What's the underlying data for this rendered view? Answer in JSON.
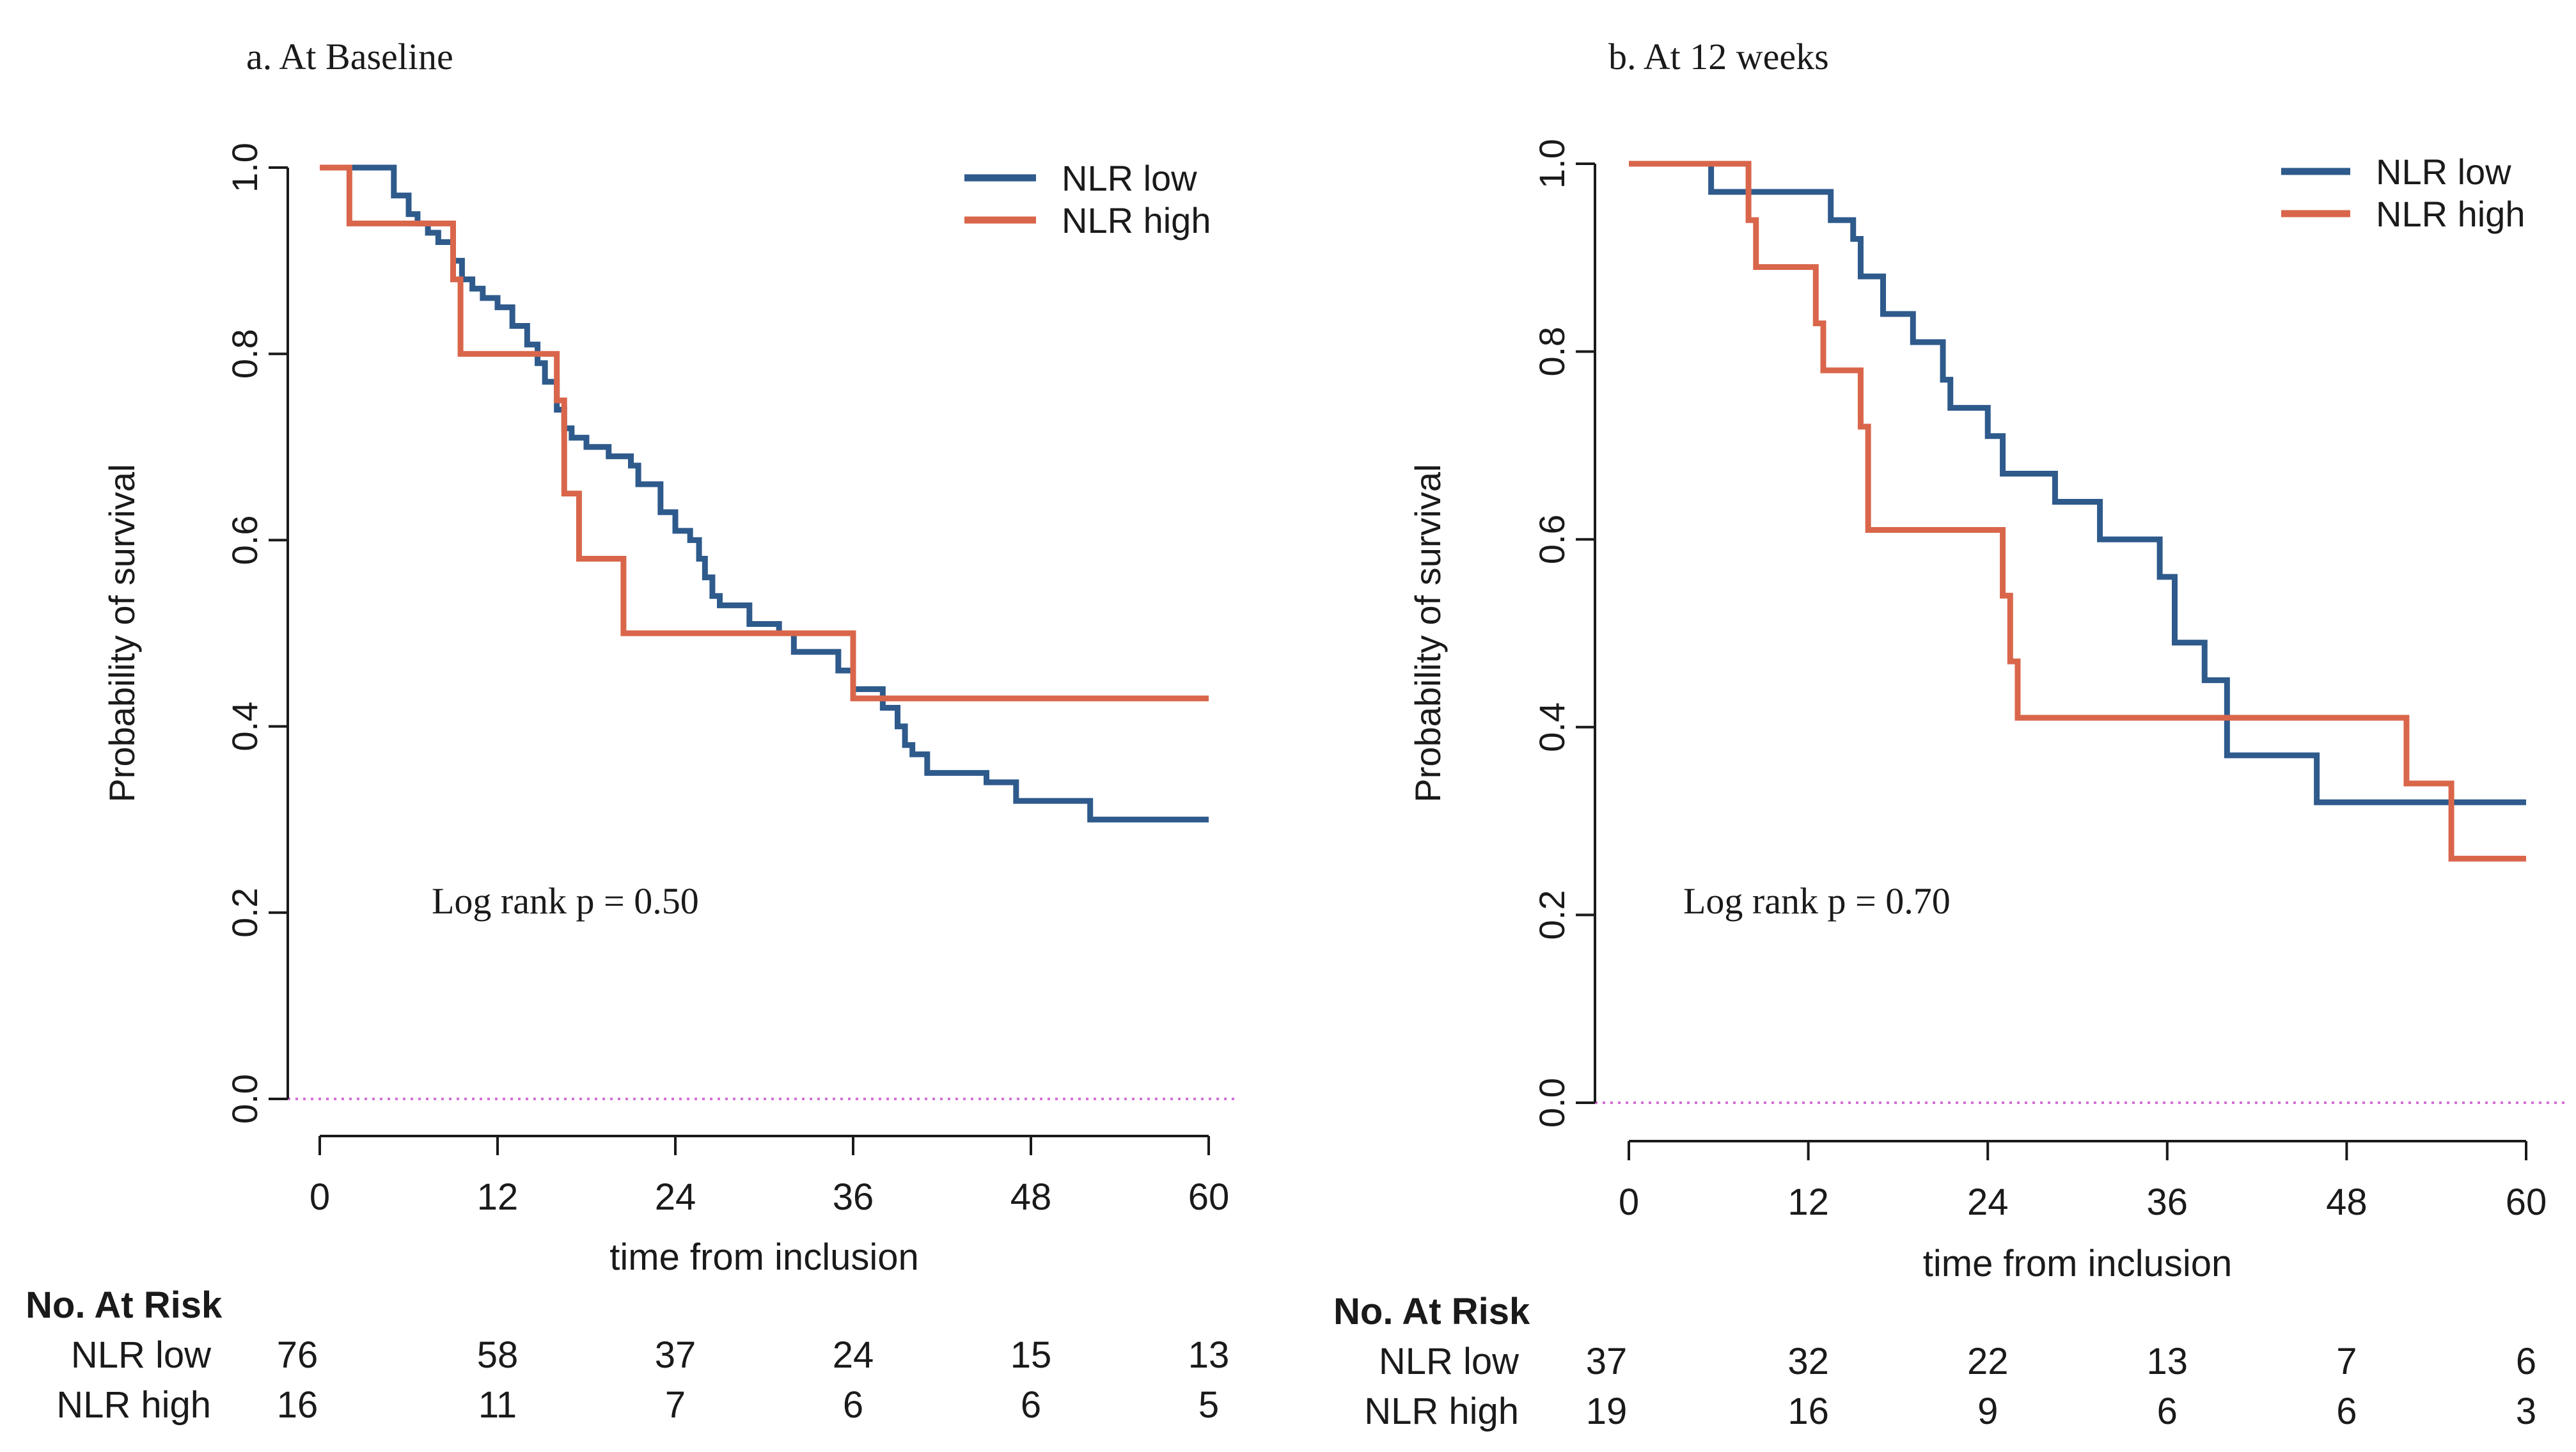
{
  "colors": {
    "low": "#2e5a8c",
    "high": "#d9664b",
    "zero_line": "#d46fd4",
    "axis": "#1a1a1a"
  },
  "chart_data": [
    {
      "type": "line",
      "subtype": "kaplan-meier",
      "title": "a. At Baseline",
      "xlabel": "time from inclusion",
      "ylabel": "Probability of survival",
      "xlim": [
        0,
        60
      ],
      "ylim": [
        0,
        1
      ],
      "xticks": [
        "0",
        "12",
        "24",
        "36",
        "48",
        "60"
      ],
      "yticks": [
        "0.0",
        "0.2",
        "0.4",
        "0.6",
        "0.8",
        "1.0"
      ],
      "legend_position": "top-right",
      "annotation": "Log rank p = 0.50",
      "series": [
        {
          "name": "NLR low",
          "color_key": "low",
          "x": [
            0,
            5,
            6,
            6.6,
            7.3,
            8,
            9,
            9.6,
            10.3,
            11,
            12,
            13,
            14,
            14.7,
            15.2,
            16,
            16.5,
            17,
            18,
            19.5,
            21,
            21.5,
            23,
            24,
            25,
            25.6,
            26,
            26.5,
            27,
            29,
            31,
            32,
            35,
            36,
            38,
            39,
            39.5,
            40,
            41,
            45,
            47,
            52,
            60
          ],
          "y": [
            1.0,
            0.97,
            0.95,
            0.94,
            0.93,
            0.92,
            0.9,
            0.88,
            0.87,
            0.86,
            0.85,
            0.83,
            0.81,
            0.79,
            0.77,
            0.74,
            0.72,
            0.71,
            0.7,
            0.69,
            0.68,
            0.66,
            0.63,
            0.61,
            0.6,
            0.58,
            0.56,
            0.54,
            0.53,
            0.51,
            0.5,
            0.48,
            0.46,
            0.44,
            0.42,
            0.4,
            0.38,
            0.37,
            0.35,
            0.34,
            0.32,
            0.3,
            0.3
          ]
        },
        {
          "name": "NLR high",
          "color_key": "high",
          "x": [
            0,
            2,
            9,
            9.5,
            16,
            16.5,
            17.5,
            20.5,
            36,
            60
          ],
          "y": [
            1.0,
            0.94,
            0.88,
            0.8,
            0.75,
            0.65,
            0.58,
            0.5,
            0.43,
            0.43
          ]
        }
      ],
      "risk_table": {
        "header": "No. At Risk",
        "rows": [
          {
            "label": "NLR low",
            "counts": [
              "76",
              "58",
              "37",
              "24",
              "15",
              "13"
            ]
          },
          {
            "label": "NLR high",
            "counts": [
              "16",
              "11",
              "7",
              "6",
              "6",
              "5"
            ]
          }
        ]
      }
    },
    {
      "type": "line",
      "subtype": "kaplan-meier",
      "title": "b. At 12 weeks",
      "xlabel": "time from inclusion",
      "ylabel": "Probability of survival",
      "xlim": [
        0,
        60
      ],
      "ylim": [
        0,
        1
      ],
      "xticks": [
        "0",
        "12",
        "24",
        "36",
        "48",
        "60"
      ],
      "yticks": [
        "0.0",
        "0.2",
        "0.4",
        "0.6",
        "0.8",
        "1.0"
      ],
      "legend_position": "top-right",
      "annotation": "Log rank p = 0.70",
      "series": [
        {
          "name": "NLR low",
          "color_key": "low",
          "x": [
            0,
            5.5,
            13.5,
            15,
            15.5,
            17,
            19,
            21,
            21.5,
            24,
            25,
            28.5,
            31.5,
            35.5,
            36.5,
            38.5,
            40,
            46,
            60
          ],
          "y": [
            1.0,
            0.97,
            0.94,
            0.92,
            0.88,
            0.84,
            0.81,
            0.77,
            0.74,
            0.71,
            0.67,
            0.64,
            0.6,
            0.56,
            0.49,
            0.45,
            0.37,
            0.32,
            0.32
          ]
        },
        {
          "name": "NLR high",
          "color_key": "high",
          "x": [
            0,
            8,
            8.5,
            12.5,
            13,
            15.5,
            16,
            25,
            25.5,
            26,
            52,
            55,
            60
          ],
          "y": [
            1.0,
            0.94,
            0.89,
            0.83,
            0.78,
            0.72,
            0.61,
            0.54,
            0.47,
            0.41,
            0.34,
            0.26,
            0.26
          ]
        }
      ],
      "risk_table": {
        "header": "No. At Risk",
        "rows": [
          {
            "label": "NLR low",
            "counts": [
              "37",
              "32",
              "22",
              "13",
              "7",
              "6"
            ]
          },
          {
            "label": "NLR high",
            "counts": [
              "19",
              "16",
              "9",
              "6",
              "6",
              "3"
            ]
          }
        ]
      }
    }
  ]
}
